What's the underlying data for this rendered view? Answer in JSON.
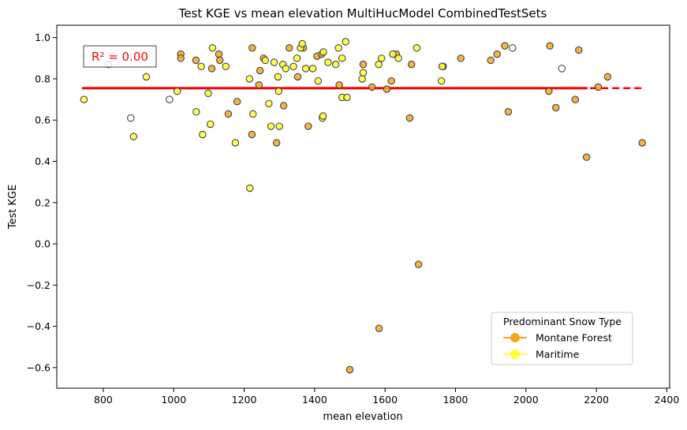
{
  "chart_data": {
    "type": "scatter",
    "title": "Test KGE vs mean elevation MultiHucModel CombinedTestSets",
    "xlabel": "mean elevation",
    "ylabel": "Test KGE",
    "xlim": [
      668,
      2408
    ],
    "ylim": [
      -0.7,
      1.06
    ],
    "xticks": [
      800,
      1000,
      1200,
      1400,
      1600,
      1800,
      2000,
      2200,
      2400
    ],
    "yticks": [
      1.0,
      0.8,
      0.6,
      0.4,
      0.2,
      0.0,
      -0.2,
      -0.4,
      -0.6
    ],
    "ytick_labels": [
      "1.0",
      "0.8",
      "0.6",
      "0.4",
      "0.2",
      "0.0",
      "−0.2",
      "−0.4",
      "−0.6"
    ],
    "grid": false,
    "annotation": "R² = 0.00",
    "trend": {
      "solid_x": [
        740,
        2175
      ],
      "dashed_x": [
        740,
        2330
      ],
      "y": 0.755
    },
    "colors": {
      "montane": "#f5a623",
      "maritime": "#ffff33",
      "other": "#ffffff",
      "edge": "#444444",
      "trend": "#ff0000",
      "annotation": "#ff0000"
    },
    "legend": {
      "title": "Predominant Snow Type",
      "placement": "lower-right",
      "entries": [
        {
          "label": "Montane Forest",
          "color": "#f5a623"
        },
        {
          "label": "Maritime",
          "color": "#ffff33"
        }
      ]
    },
    "series": [
      {
        "name": "Montane Forest",
        "color": "#f5a623",
        "points": [
          [
            1020,
            0.92
          ],
          [
            1063,
            0.89
          ],
          [
            1128,
            0.92
          ],
          [
            1131,
            0.89
          ],
          [
            1180,
            0.69
          ],
          [
            1223,
            0.95
          ],
          [
            1242,
            0.77
          ],
          [
            1245,
            0.84
          ],
          [
            1255,
            0.9
          ],
          [
            1292,
            0.49
          ],
          [
            1312,
            0.67
          ],
          [
            1328,
            0.95
          ],
          [
            1352,
            0.81
          ],
          [
            1368,
            0.95
          ],
          [
            1382,
            0.57
          ],
          [
            1407,
            0.91
          ],
          [
            1420,
            0.92
          ],
          [
            1470,
            0.77
          ],
          [
            1538,
            0.87
          ],
          [
            1563,
            0.76
          ],
          [
            1583,
            -0.41
          ],
          [
            1605,
            0.75
          ],
          [
            1618,
            0.79
          ],
          [
            1632,
            0.92
          ],
          [
            1670,
            0.61
          ],
          [
            1675,
            0.87
          ],
          [
            1695,
            -0.1
          ],
          [
            1765,
            0.86
          ],
          [
            1815,
            0.9
          ],
          [
            1900,
            0.89
          ],
          [
            1918,
            0.92
          ],
          [
            1940,
            0.96
          ],
          [
            1950,
            0.64
          ],
          [
            2065,
            0.74
          ],
          [
            2068,
            0.96
          ],
          [
            2085,
            0.66
          ],
          [
            2140,
            0.7
          ],
          [
            2150,
            0.94
          ],
          [
            2172,
            0.42
          ],
          [
            2205,
            0.76
          ],
          [
            2232,
            0.81
          ],
          [
            2330,
            0.49
          ],
          [
            1020,
            0.9
          ],
          [
            1108,
            0.85
          ],
          [
            1155,
            0.63
          ],
          [
            1500,
            -0.61
          ],
          [
            1222,
            0.53
          ]
        ]
      },
      {
        "name": "Maritime",
        "color": "#ffff33",
        "points": [
          [
            745,
            0.7
          ],
          [
            886,
            0.52
          ],
          [
            922,
            0.81
          ],
          [
            1064,
            0.64
          ],
          [
            1078,
            0.86
          ],
          [
            1082,
            0.53
          ],
          [
            1098,
            0.73
          ],
          [
            1104,
            0.58
          ],
          [
            1110,
            0.95
          ],
          [
            1148,
            0.86
          ],
          [
            1175,
            0.49
          ],
          [
            1215,
            0.8
          ],
          [
            1216,
            0.27
          ],
          [
            1225,
            0.63
          ],
          [
            1260,
            0.89
          ],
          [
            1270,
            0.68
          ],
          [
            1276,
            0.57
          ],
          [
            1285,
            0.88
          ],
          [
            1296,
            0.81
          ],
          [
            1298,
            0.74
          ],
          [
            1300,
            0.57
          ],
          [
            1310,
            0.87
          ],
          [
            1318,
            0.85
          ],
          [
            1340,
            0.86
          ],
          [
            1350,
            0.9
          ],
          [
            1360,
            0.95
          ],
          [
            1365,
            0.97
          ],
          [
            1375,
            0.85
          ],
          [
            1395,
            0.85
          ],
          [
            1410,
            0.79
          ],
          [
            1422,
            0.61
          ],
          [
            1425,
            0.93
          ],
          [
            1424,
            0.62
          ],
          [
            1438,
            0.88
          ],
          [
            1460,
            0.87
          ],
          [
            1468,
            0.95
          ],
          [
            1478,
            0.9
          ],
          [
            1478,
            0.71
          ],
          [
            1488,
            0.98
          ],
          [
            1492,
            0.71
          ],
          [
            1535,
            0.8
          ],
          [
            1538,
            0.83
          ],
          [
            1582,
            0.87
          ],
          [
            1590,
            0.9
          ],
          [
            1622,
            0.92
          ],
          [
            1638,
            0.9
          ],
          [
            1690,
            0.95
          ],
          [
            1760,
            0.79
          ],
          [
            1762,
            0.86
          ],
          [
            1010,
            0.74
          ]
        ]
      },
      {
        "name": "",
        "color": "#ffffff",
        "points": [
          [
            815,
            0.87
          ],
          [
            878,
            0.61
          ],
          [
            988,
            0.7
          ],
          [
            1962,
            0.95
          ],
          [
            2102,
            0.85
          ]
        ]
      }
    ]
  }
}
